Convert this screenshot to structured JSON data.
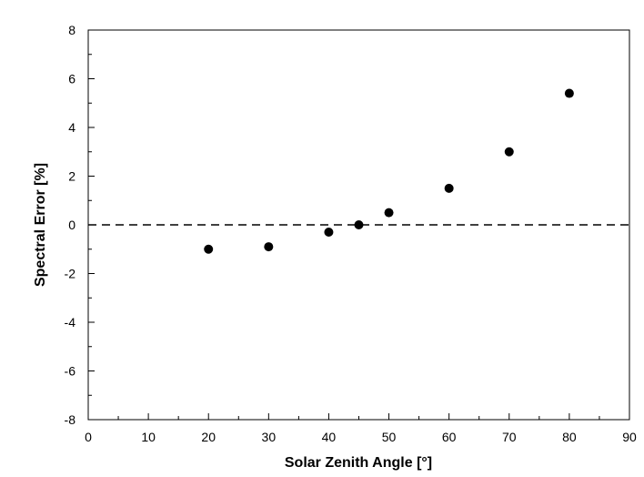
{
  "chart_data": {
    "type": "scatter",
    "title": "",
    "xlabel": "Solar Zenith Angle [°]",
    "ylabel": "Spectral Error [%]",
    "xlim": [
      0,
      90
    ],
    "ylim": [
      -8,
      8
    ],
    "x_ticks": [
      0,
      10,
      20,
      30,
      40,
      50,
      60,
      70,
      80,
      90
    ],
    "y_ticks": [
      -8,
      -6,
      -4,
      -2,
      0,
      2,
      4,
      6,
      8
    ],
    "grid": false,
    "legend": "none",
    "reference_line": {
      "y": 0,
      "style": "dashed"
    },
    "series": [
      {
        "x": [
          20,
          30,
          40,
          45,
          50,
          60,
          70,
          80
        ],
        "y": [
          -1.0,
          -0.9,
          -0.3,
          0.0,
          0.5,
          1.5,
          3.0,
          5.4
        ],
        "color": "#000000"
      }
    ]
  }
}
